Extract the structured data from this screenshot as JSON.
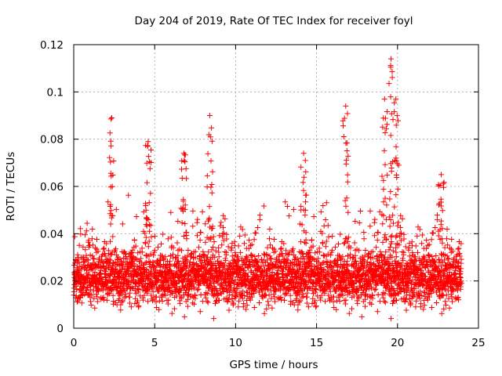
{
  "chart_data": {
    "type": "scatter",
    "title": "Day 204 of 2019, Rate Of TEC Index for receiver foyl",
    "xlabel": "GPS time / hours",
    "ylabel": "ROTI / TECUs",
    "xlim": [
      0,
      25
    ],
    "ylim": [
      0,
      0.12
    ],
    "x_ticks": [
      0,
      5,
      10,
      15,
      20,
      25
    ],
    "x_tick_labels": [
      "0",
      "5",
      "10",
      "15",
      "20",
      "25"
    ],
    "y_ticks": [
      0,
      0.02,
      0.04,
      0.06,
      0.08,
      0.1,
      0.12
    ],
    "y_tick_labels": [
      "0",
      "0.02",
      "0.04",
      "0.06",
      "0.08",
      "0.1",
      "0.12"
    ],
    "grid": true,
    "marker": "+",
    "series": [
      {
        "name": "ROTI",
        "color": "#ff0000",
        "x_range": [
          0,
          23.95
        ],
        "typical_y_range": [
          0.008,
          0.035
        ],
        "max_point": {
          "x": 19.6,
          "y": 0.114
        },
        "notable_spikes": [
          {
            "x": 2.35,
            "y": 0.089
          },
          {
            "x": 4.6,
            "y": 0.079
          },
          {
            "x": 6.8,
            "y": 0.074
          },
          {
            "x": 8.4,
            "y": 0.09
          },
          {
            "x": 14.2,
            "y": 0.074
          },
          {
            "x": 16.8,
            "y": 0.094
          },
          {
            "x": 19.2,
            "y": 0.097
          },
          {
            "x": 19.6,
            "y": 0.114
          },
          {
            "x": 19.9,
            "y": 0.097
          },
          {
            "x": 22.7,
            "y": 0.065
          }
        ]
      }
    ]
  }
}
